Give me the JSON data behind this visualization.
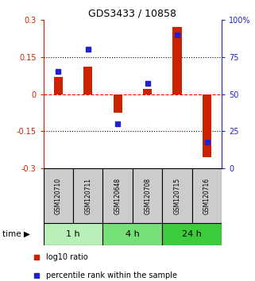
{
  "title": "GDS3433 / 10858",
  "samples": [
    "GSM120710",
    "GSM120711",
    "GSM120648",
    "GSM120708",
    "GSM120715",
    "GSM120716"
  ],
  "log10_ratio": [
    0.07,
    0.11,
    -0.075,
    0.02,
    0.27,
    -0.255
  ],
  "percentile_rank": [
    65,
    80,
    30,
    57,
    90,
    18
  ],
  "groups": [
    {
      "label": "1 h",
      "indices": [
        0,
        1
      ],
      "color": "#b8f0b8"
    },
    {
      "label": "4 h",
      "indices": [
        2,
        3
      ],
      "color": "#78e078"
    },
    {
      "label": "24 h",
      "indices": [
        4,
        5
      ],
      "color": "#3ccc3c"
    }
  ],
  "ylim_left": [
    -0.3,
    0.3
  ],
  "yticks_left": [
    -0.3,
    -0.15,
    0.0,
    0.15,
    0.3
  ],
  "ytick_labels_left": [
    "-0.3",
    "-0.15",
    "0",
    "0.15",
    "0.3"
  ],
  "yticks_right": [
    0,
    25,
    50,
    75,
    100
  ],
  "ytick_labels_right": [
    "0",
    "25",
    "50",
    "75",
    "100%"
  ],
  "hlines_dotted": [
    -0.15,
    0.15
  ],
  "bar_width": 0.3,
  "red_color": "#cc2200",
  "blue_color": "#2222cc",
  "sample_box_color": "#cccccc",
  "time_label": "time",
  "legend_red": "log10 ratio",
  "legend_blue": "percentile rank within the sample",
  "bg_color": "#ffffff"
}
